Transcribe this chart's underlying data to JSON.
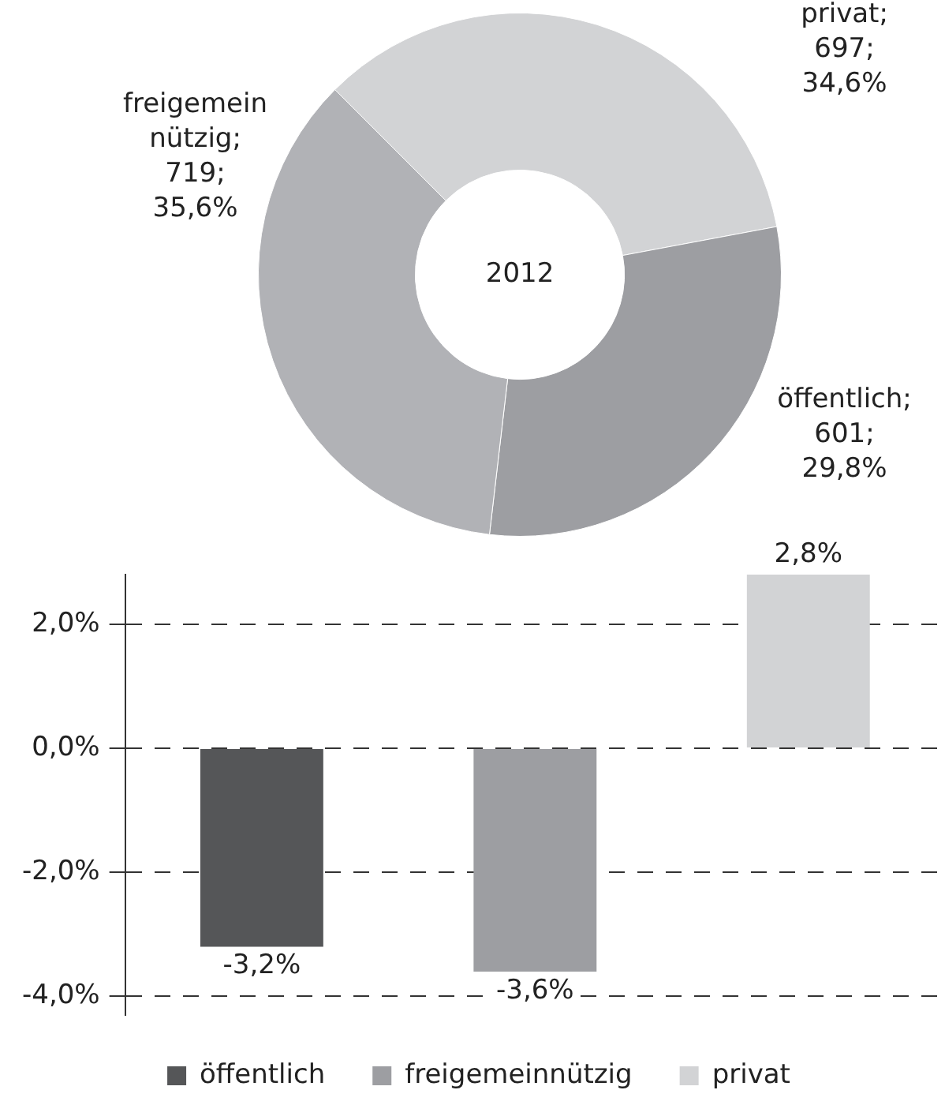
{
  "chart_data": [
    {
      "type": "donut",
      "categories": [
        "privat",
        "öffentlich",
        "freigemein nützig"
      ],
      "values": [
        697,
        601,
        719
      ],
      "colors": [
        "#d2d3d5",
        "#9d9ea2",
        "#b1b2b6"
      ],
      "value_labels": [
        "; 697; 34,6%",
        "; 601; 29,8%",
        "; 719; 35,6%"
      ],
      "annotations": [
        "2012"
      ]
    },
    {
      "type": "bar",
      "categories": [
        null,
        null,
        null
      ],
      "series": [
        {
          "name": "öffentlich",
          "color": "#555658",
          "values": [
            -3.2,
            null,
            null
          ],
          "value_labels": [
            "-3,2%",
            null,
            null
          ]
        },
        {
          "name": "freigemeinnützig",
          "color": "#9d9ea2",
          "values": [
            null,
            -3.6,
            null
          ],
          "value_labels": [
            null,
            "-3,6%",
            null
          ]
        },
        {
          "name": "privat",
          "color": "#d2d3d5",
          "values": [
            null,
            null,
            2.8
          ],
          "value_labels": [
            null,
            null,
            "2,8%"
          ]
        }
      ],
      "ylim": [
        -4.3,
        2.8
      ],
      "yticks": [
        {
          "value": -4,
          "label": "-4,0%"
        },
        {
          "value": -2,
          "label": "-2,0%"
        },
        {
          "value": 0,
          "label": "0,0%"
        },
        {
          "value": 2,
          "label": "2,0%"
        }
      ],
      "grid": "y",
      "legend": "bottom"
    }
  ]
}
